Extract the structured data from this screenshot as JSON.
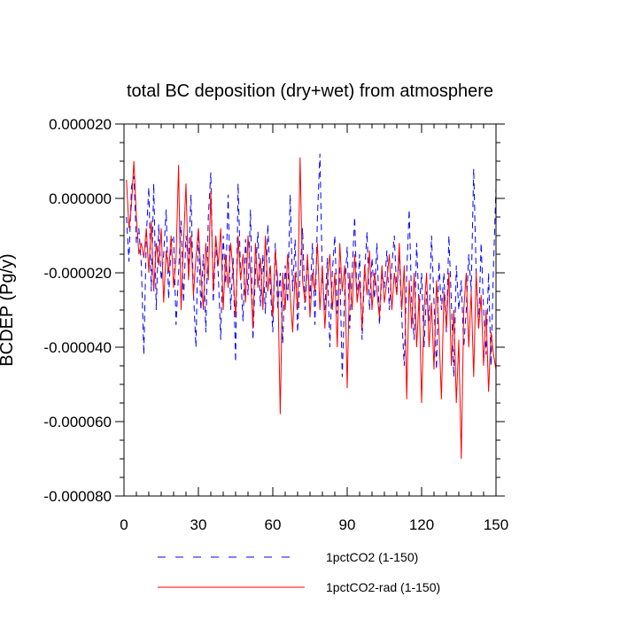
{
  "chart_data": {
    "type": "line",
    "title": "total BC deposition (dry+wet) from atmosphere",
    "ylabel": "BCDEP  (Pg/y)",
    "xlabel": "",
    "xlim": [
      0,
      150
    ],
    "ylim": [
      -8e-05,
      2e-05
    ],
    "x_ticks": [
      0,
      30,
      60,
      90,
      120,
      150
    ],
    "x_tick_labels": [
      "0",
      "30",
      "60",
      "90",
      "120",
      "150"
    ],
    "y_ticks": [
      2e-05,
      0.0,
      -2e-05,
      -4e-05,
      -6e-05,
      -8e-05
    ],
    "y_tick_labels": [
      "0.000020",
      "0.000000",
      "-0.000020",
      "-0.000040",
      "-0.000060",
      "-0.000080"
    ],
    "legend_position": "bottom",
    "series": [
      {
        "name": "1pctCO2 (1-150)",
        "color": "#0000ff",
        "style": "dashed",
        "x": [
          1,
          2,
          3,
          4,
          5,
          6,
          7,
          8,
          9,
          10,
          11,
          12,
          13,
          14,
          15,
          16,
          17,
          18,
          19,
          20,
          21,
          22,
          23,
          24,
          25,
          26,
          27,
          28,
          29,
          30,
          31,
          32,
          33,
          34,
          35,
          36,
          37,
          38,
          39,
          40,
          41,
          42,
          43,
          44,
          45,
          46,
          47,
          48,
          49,
          50,
          51,
          52,
          53,
          54,
          55,
          56,
          57,
          58,
          59,
          60,
          61,
          62,
          63,
          64,
          65,
          66,
          67,
          68,
          69,
          70,
          71,
          72,
          73,
          74,
          75,
          76,
          77,
          78,
          79,
          80,
          81,
          82,
          83,
          84,
          85,
          86,
          87,
          88,
          89,
          90,
          91,
          92,
          93,
          94,
          95,
          96,
          97,
          98,
          99,
          100,
          101,
          102,
          103,
          104,
          105,
          106,
          107,
          108,
          109,
          110,
          111,
          112,
          113,
          114,
          115,
          116,
          117,
          118,
          119,
          120,
          121,
          122,
          123,
          124,
          125,
          126,
          127,
          128,
          129,
          130,
          131,
          132,
          133,
          134,
          135,
          136,
          137,
          138,
          139,
          140,
          141,
          142,
          143,
          144,
          145,
          146,
          147,
          148,
          149,
          150
        ],
        "y": [
          -5e-06,
          -1.7e-05,
          3e-06,
          6e-06,
          -1.2e-05,
          -8e-06,
          -1.8e-05,
          -4.2e-05,
          -1e-05,
          3e-06,
          -2.5e-05,
          4e-06,
          -3e-05,
          -7e-06,
          -2.2e-05,
          -1.5e-05,
          -3e-06,
          -2.7e-05,
          -1.2e-05,
          -1e-05,
          -3.4e-05,
          -2e-05,
          -6e-06,
          -2.8e-05,
          -1e-05,
          -1.8e-05,
          1e-06,
          -2.5e-05,
          -4e-05,
          -8e-06,
          -3e-05,
          -1.5e-05,
          -3.6e-05,
          -5e-06,
          7e-06,
          -2.8e-05,
          -1.2e-05,
          -2e-05,
          -3.8e-05,
          -1e-05,
          -2.3e-05,
          1e-06,
          -3e-05,
          -1.6e-05,
          -4.4e-05,
          4e-06,
          -2e-05,
          -3.3e-05,
          -1.1e-05,
          -2.6e-05,
          -3e-06,
          -3.8e-05,
          -2e-05,
          -9e-06,
          -2.9e-05,
          -1.5e-05,
          -3.1e-05,
          -7e-06,
          -2.4e-05,
          -3.6e-05,
          -1.2e-05,
          -3e-05,
          -2e-05,
          -3.9e-05,
          -1.8e-05,
          -2.8e-05,
          1e-06,
          -2.5e-05,
          -1.1e-05,
          -3.6e-05,
          -2e-05,
          -8e-06,
          -3e-05,
          -1.7e-05,
          -2.7e-05,
          -1.2e-05,
          -3.4e-05,
          -5e-06,
          1.2e-05,
          -2.2e-05,
          -3e-05,
          -1.6e-05,
          -4e-05,
          -2e-05,
          -1e-05,
          -3.1e-05,
          -1.8e-05,
          -4.8e-05,
          -2.5e-05,
          -1.3e-05,
          -3.5e-05,
          -2e-05,
          -5e-06,
          -2.8e-05,
          -1.5e-05,
          -3.8e-05,
          -2e-05,
          -9e-06,
          -3e-05,
          -1.6e-05,
          -2.7e-05,
          -1.2e-05,
          -3.4e-05,
          -2e-05,
          -2.4e-05,
          -1.4e-05,
          -3e-05,
          -1.8e-05,
          -1e-05,
          -2.6e-05,
          -1.5e-05,
          -3.2e-05,
          -4.5e-05,
          -2e-05,
          -3e-06,
          -2.8e-05,
          -3.8e-05,
          -1.2e-05,
          -3e-05,
          -2e-05,
          -4e-05,
          -2.5e-05,
          -3.3e-05,
          -1e-05,
          -2.8e-05,
          -4.6e-05,
          -1.7e-05,
          -3e-05,
          -2e-05,
          -3.6e-05,
          -1e-05,
          -2.8e-05,
          -4.8e-05,
          -1.8e-05,
          -3e-05,
          -2.2e-05,
          -4e-05,
          -3e-05,
          -1.5e-05,
          -2.5e-05,
          8e-06,
          -2e-05,
          -3.5e-05,
          -1.2e-05,
          -3e-05,
          -4.2e-05,
          -2e-05,
          -4.5e-05,
          -1.8e-05,
          3e-06
        ]
      },
      {
        "name": "1pctCO2-rad (1-150)",
        "color": "#ff0000",
        "style": "solid",
        "x": [
          1,
          2,
          3,
          4,
          5,
          6,
          7,
          8,
          9,
          10,
          11,
          12,
          13,
          14,
          15,
          16,
          17,
          18,
          19,
          20,
          21,
          22,
          23,
          24,
          25,
          26,
          27,
          28,
          29,
          30,
          31,
          32,
          33,
          34,
          35,
          36,
          37,
          38,
          39,
          40,
          41,
          42,
          43,
          44,
          45,
          46,
          47,
          48,
          49,
          50,
          51,
          52,
          53,
          54,
          55,
          56,
          57,
          58,
          59,
          60,
          61,
          62,
          63,
          64,
          65,
          66,
          67,
          68,
          69,
          70,
          71,
          72,
          73,
          74,
          75,
          76,
          77,
          78,
          79,
          80,
          81,
          82,
          83,
          84,
          85,
          86,
          87,
          88,
          89,
          90,
          91,
          92,
          93,
          94,
          95,
          96,
          97,
          98,
          99,
          100,
          101,
          102,
          103,
          104,
          105,
          106,
          107,
          108,
          109,
          110,
          111,
          112,
          113,
          114,
          115,
          116,
          117,
          118,
          119,
          120,
          121,
          122,
          123,
          124,
          125,
          126,
          127,
          128,
          129,
          130,
          131,
          132,
          133,
          134,
          135,
          136,
          137,
          138,
          139,
          140,
          141,
          142,
          143,
          144,
          145,
          146,
          147,
          148,
          149,
          150
        ],
        "y": [
          5e-06,
          -8e-06,
          -2e-06,
          1e-05,
          -5e-06,
          -1.5e-05,
          -1.2e-05,
          -1.6e-05,
          -8e-06,
          -2e-05,
          -6e-06,
          -2.5e-05,
          -1.2e-05,
          -1.8e-05,
          -8e-06,
          -2.8e-05,
          -1.4e-05,
          -2e-05,
          -1e-05,
          -2.4e-05,
          -1.6e-05,
          9e-06,
          -3e-05,
          -1.2e-05,
          4e-06,
          -2.2e-05,
          -1e-05,
          -2.6e-05,
          -1.6e-05,
          -8e-06,
          -2e-05,
          -3e-05,
          -1.2e-05,
          -2.2e-05,
          2e-06,
          -2.5e-05,
          -1e-05,
          -1.8e-05,
          -8e-06,
          -3e-05,
          -1.5e-05,
          -2.4e-05,
          -1.2e-05,
          -2e-05,
          -3.2e-05,
          -1e-05,
          -2.2e-05,
          -1.5e-05,
          -2.8e-05,
          -1e-05,
          -2e-05,
          -3.5e-05,
          -1.2e-05,
          -2.4e-05,
          -1.6e-05,
          -3e-05,
          -1e-05,
          -2.5e-05,
          -1.8e-05,
          -3.2e-05,
          -1.4e-05,
          -2.2e-05,
          -5.8e-05,
          -2e-05,
          -3e-05,
          -1.5e-05,
          -2.6e-05,
          -3.6e-05,
          -2e-05,
          -3e-05,
          1.1e-05,
          -2.2e-05,
          -2.8e-05,
          -1.5e-05,
          -3.2e-05,
          -2e-05,
          -2.5e-05,
          -1.2e-05,
          -3e-05,
          -1.8e-05,
          -3.5e-05,
          -2.2e-05,
          -1.5e-05,
          -3e-05,
          -2e-05,
          -4e-05,
          -1.2e-05,
          -2.5e-05,
          -1.8e-05,
          -5.1e-05,
          -2e-05,
          -3e-05,
          -1.5e-05,
          -2.8e-05,
          -2.2e-05,
          -3.5e-05,
          -1.8e-05,
          -2.6e-05,
          -1.4e-05,
          -3e-05,
          -2e-05,
          -2.5e-05,
          -3.2e-05,
          -1.8e-05,
          -2.8e-05,
          -2.2e-05,
          -1.5e-05,
          -3e-05,
          -2e-05,
          -2.6e-05,
          -1.2e-05,
          -3e-05,
          -1.8e-05,
          -5.4e-05,
          -2.2e-05,
          -3.5e-05,
          -2e-05,
          -4e-05,
          -2.6e-05,
          -5.5e-05,
          -3e-05,
          -2e-05,
          -4e-05,
          -2.8e-05,
          -4.6e-05,
          -2.2e-05,
          -3.6e-05,
          -5.4e-05,
          -2.5e-05,
          -3.5e-05,
          -2e-05,
          -4.5e-05,
          -3e-05,
          -5.5e-05,
          -3.8e-05,
          -7e-05,
          -3e-05,
          -2e-05,
          -4e-05,
          -2.5e-05,
          -4.8e-05,
          -2e-05,
          -3.5e-05,
          -2.6e-05,
          -4.5e-05,
          -3e-05,
          -5.2e-05,
          -3.6e-05,
          -4.2e-05,
          -4.6e-05
        ]
      }
    ]
  }
}
